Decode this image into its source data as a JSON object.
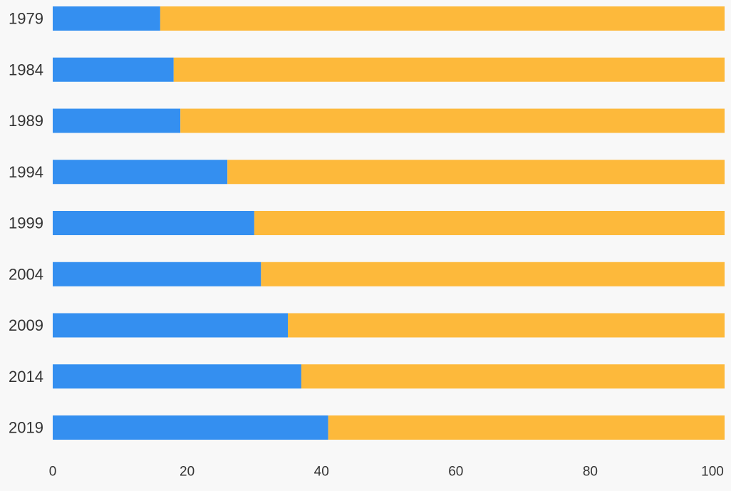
{
  "chart_data": {
    "type": "bar",
    "orientation": "horizontal",
    "stacked": true,
    "categories": [
      "1979",
      "1984",
      "1989",
      "1994",
      "1999",
      "2004",
      "2009",
      "2014",
      "2019"
    ],
    "series": [
      {
        "values": [
          16,
          18,
          19,
          26,
          30,
          31,
          35,
          37,
          41
        ],
        "color": "#348ff0"
      },
      {
        "values": [
          84,
          82,
          81,
          74,
          70,
          69,
          65,
          63,
          59
        ],
        "color": "#fdb93b"
      }
    ],
    "xlim": [
      0,
      100
    ],
    "xticks": [
      "0",
      "20",
      "40",
      "60",
      "80",
      "100"
    ],
    "grid": false,
    "legend": "none",
    "background": "#f8f8f8"
  }
}
